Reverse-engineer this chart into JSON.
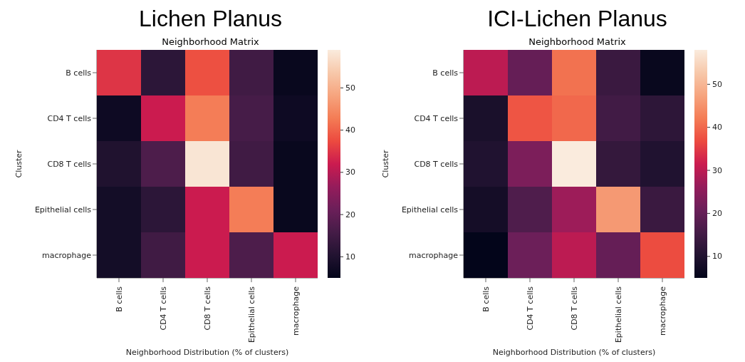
{
  "chart_data": [
    {
      "type": "heatmap",
      "title": "Lichen Planus",
      "subtitle": "Neighborhood Matrix",
      "xlabel": "Neighborhood Distribution (% of clusters)",
      "ylabel": "Cluster",
      "categories": [
        "B cells",
        "CD4 T cells",
        "CD8 T cells",
        "Epithelial cells",
        "macrophage"
      ],
      "y_categories": [
        "B cells",
        "CD4 T cells",
        "CD8 T cells",
        "Epithelial cells",
        "macrophage"
      ],
      "cells": [
        [
          35,
          12,
          38,
          15,
          6
        ],
        [
          7,
          32,
          43,
          16,
          7
        ],
        [
          10,
          17,
          58,
          15,
          6
        ],
        [
          8,
          12,
          32,
          43,
          6
        ],
        [
          8,
          15,
          32,
          17,
          32
        ]
      ],
      "clim": [
        5,
        59
      ],
      "cticks": [
        10,
        20,
        30,
        40,
        50
      ]
    },
    {
      "type": "heatmap",
      "title": "ICI-Lichen Planus",
      "subtitle": "Neighborhood Matrix",
      "xlabel": "Neighborhood Distribution (% of clusters)",
      "ylabel": "Cluster",
      "categories": [
        "B cells",
        "CD4 T cells",
        "CD8 T cells",
        "Epithelial cells",
        "macrophage"
      ],
      "y_categories": [
        "B cells",
        "CD4 T cells",
        "CD8 T cells",
        "Epithelial cells",
        "macrophage"
      ],
      "cells": [
        [
          30,
          20,
          41,
          14,
          6
        ],
        [
          9,
          38,
          40,
          15,
          12
        ],
        [
          10,
          23,
          58,
          13,
          10
        ],
        [
          8,
          17,
          27,
          46,
          14
        ],
        [
          5,
          21,
          30,
          20,
          37
        ]
      ],
      "clim": [
        5,
        58
      ],
      "cticks": [
        10,
        20,
        30,
        40,
        50
      ]
    }
  ]
}
